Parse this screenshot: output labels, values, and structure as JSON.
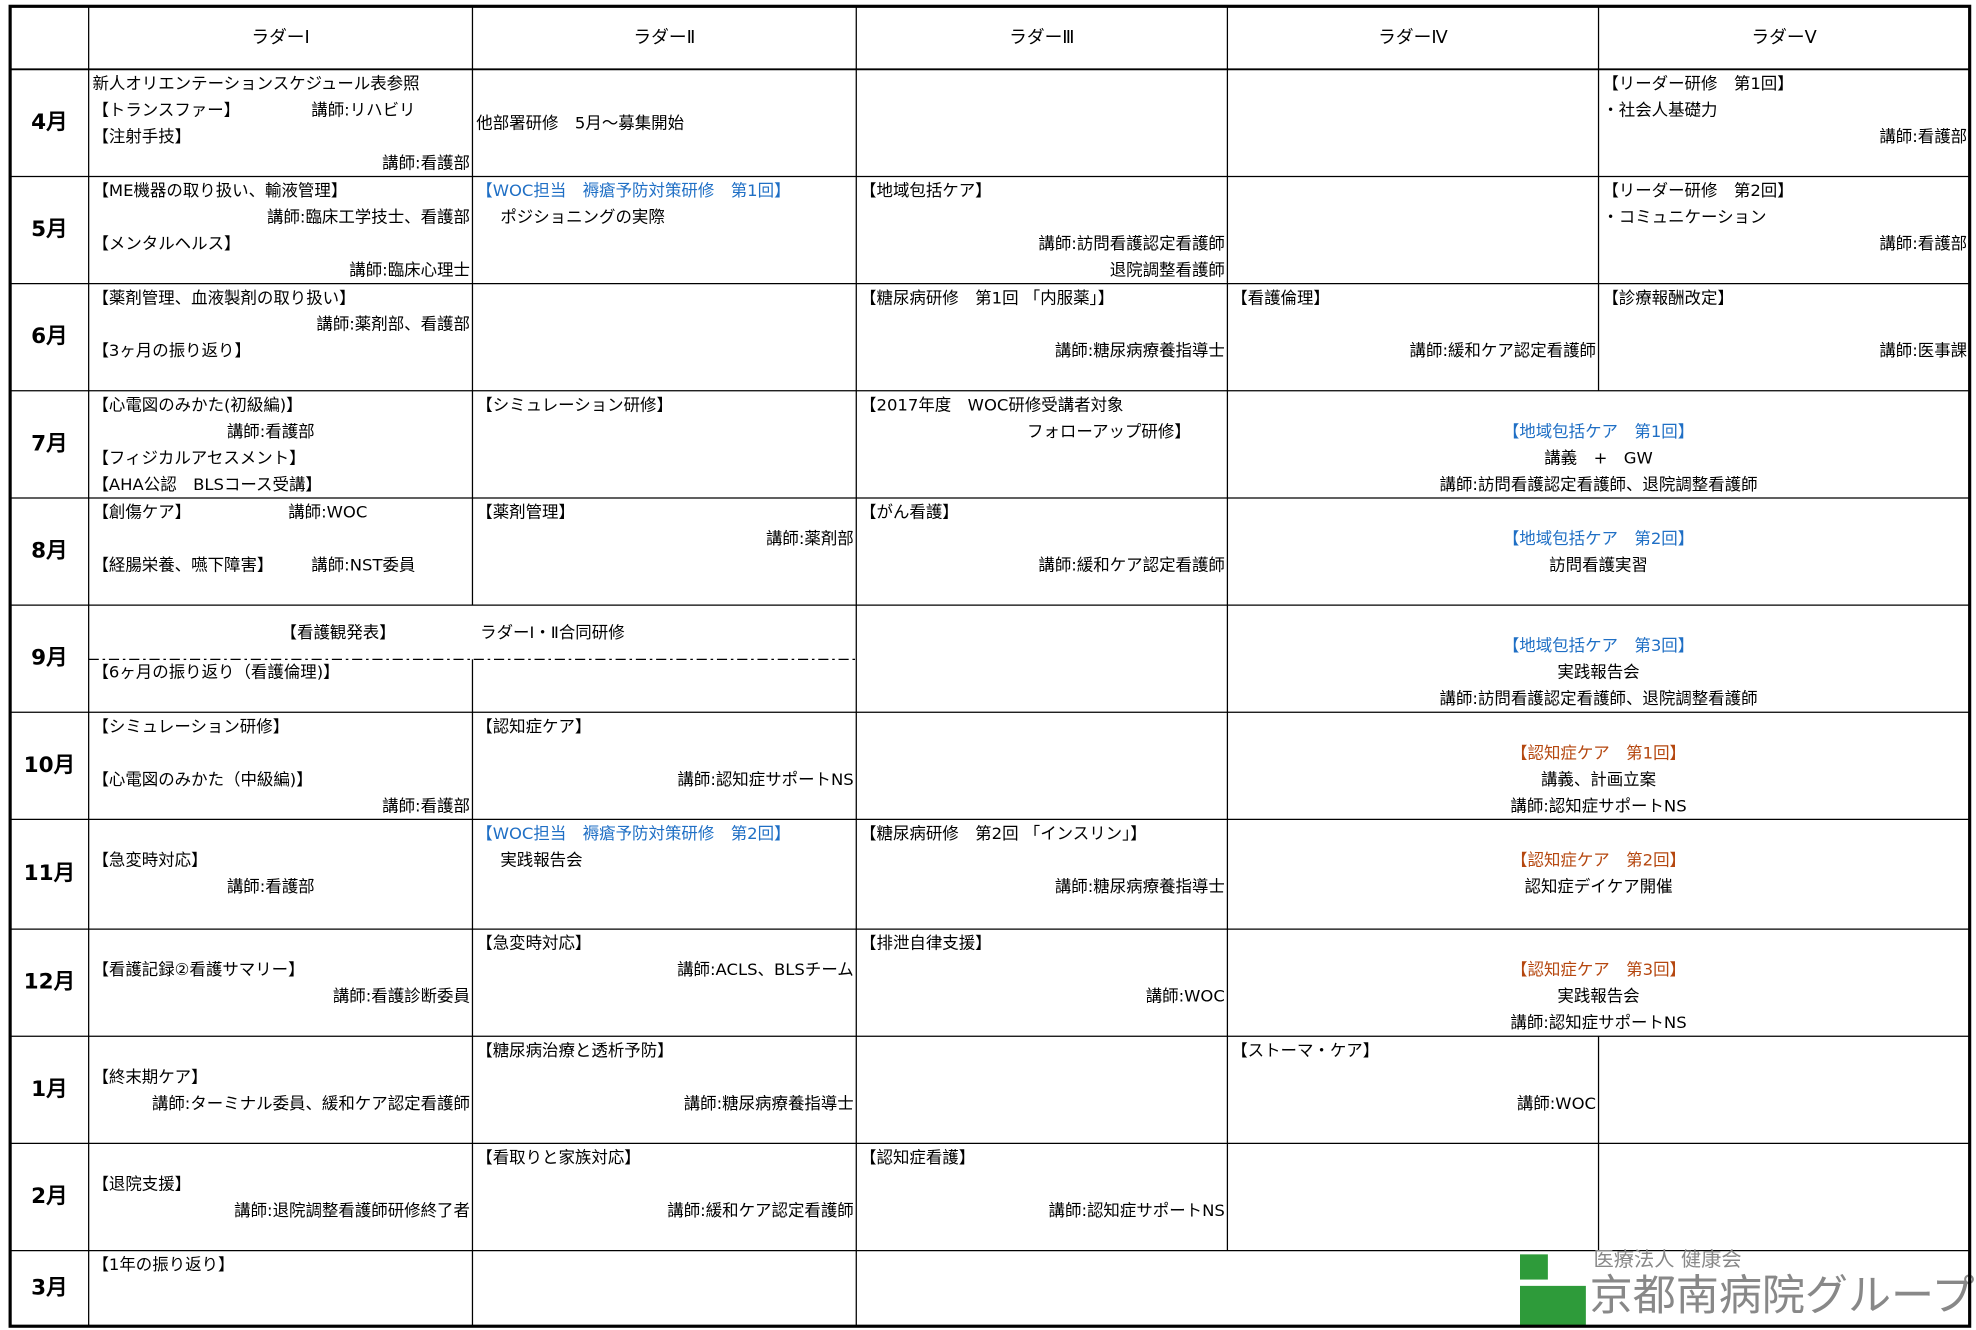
{
  "table": {
    "header": [
      "ラダーⅠ",
      "ラダーⅡ",
      "ラダーⅢ",
      "ラダーⅣ",
      "ラダーⅤ"
    ],
    "rows": [
      {
        "month": "4月",
        "cells": [
          [
            "新人オリエンテーションスケジュール表参照",
            "【トランスファー】",
            "講師:リハビリ",
            "【注射手技】",
            "講師:看護部"
          ],
          [
            "他部署研修　5月～募集開始"
          ],
          [
            "【リーダー研修　第1回】",
            "・社会人基礎力",
            "講師:看護部"
          ]
        ]
      },
      {
        "month": "5月",
        "cells": [
          [
            "【ME機器の取り扱い、輸液管理】",
            "講師:臨床工学技士、看護部",
            "【メンタルヘルス】",
            "講師:臨床心理士"
          ],
          [
            "【WOC担当　褥瘡予防対策研修　第1回】",
            "ポジショニングの実際"
          ],
          [
            "【地域包括ケア】",
            "講師:訪問看護認定看護師",
            "退院調整看護師"
          ],
          [
            "【リーダー研修　第2回】",
            "・コミュニケーション",
            "講師:看護部"
          ]
        ]
      },
      {
        "month": "6月",
        "cells": [
          [
            "【薬剤管理、血液製剤の取り扱い】",
            "講師:薬剤部、看護部",
            "【3ヶ月の振り返り】"
          ],
          [
            "【糖尿病研修　第1回 「内服薬」】",
            "講師:糖尿病療養指導士"
          ],
          [
            "【看護倫理】",
            "講師:緩和ケア認定看護師"
          ],
          [
            "【診療報酬改定】",
            "講師:医事課"
          ]
        ]
      },
      {
        "month": "7月",
        "cells": [
          [
            "【心電図のみかた(初級編)】",
            "講師:看護部",
            "【フィジカルアセスメント】",
            "【AHA公認　BLSコース受講】"
          ],
          [
            "【シミュレーション研修】"
          ],
          [
            "【2017年度　WOC研修受講者対象",
            "フォローアップ研修】"
          ],
          [
            "【地域包括ケア　第1回】",
            "講義　+　GW",
            "講師:訪問看護認定看護師、退院調整看護師"
          ]
        ]
      },
      {
        "month": "8月",
        "cells": [
          [
            "【創傷ケア】",
            "講師:WOC",
            "【経腸栄養、嚥下障害】",
            "講師:NST委員"
          ],
          [
            "【薬剤管理】",
            "講師:薬剤部"
          ],
          [
            "【がん看護】",
            "講師:緩和ケア認定看護師"
          ],
          [
            "【地域包括ケア　第2回】",
            "訪問看護実習"
          ]
        ]
      },
      {
        "month": "9月",
        "cells": [
          [
            "【看護観発表】",
            "ラダーⅠ・Ⅱ合同研修"
          ],
          [
            "【6ヶ月の振り返り（看護倫理)】"
          ],
          [
            "【地域包括ケア　第3回】",
            "実践報告会",
            "講師:訪問看護認定看護師、退院調整看護師"
          ]
        ]
      },
      {
        "month": "10月",
        "cells": [
          [
            "【シミュレーション研修】",
            "【心電図のみかた（中級編)】",
            "講師:看護部"
          ],
          [
            "【認知症ケア】",
            "講師:認知症サポートNS"
          ],
          [
            "【認知症ケア　第1回】",
            "講義、計画立案",
            "講師:認知症サポートNS"
          ]
        ]
      },
      {
        "month": "11月",
        "cells": [
          [
            "【急変時対応】",
            "講師:看護部"
          ],
          [
            "【WOC担当　褥瘡予防対策研修　第2回】",
            "実践報告会"
          ],
          [
            "【糖尿病研修　第2回 「インスリン」】",
            "講師:糖尿病療養指導士"
          ],
          [
            "【認知症ケア　第2回】",
            "認知症デイケア開催"
          ]
        ]
      },
      {
        "month": "12月",
        "cells": [
          [
            "【看護記録②看護サマリー】",
            "講師:看護診断委員"
          ],
          [
            "【急変時対応】",
            "講師:ACLS、BLSチーム"
          ],
          [
            "【排泄自律支援】",
            "講師:WOC"
          ],
          [
            "【認知症ケア　第3回】",
            "実践報告会",
            "講師:認知症サポートNS"
          ]
        ]
      },
      {
        "month": "1月",
        "cells": [
          [
            "【終末期ケア】",
            "講師:ターミナル委員、緩和ケア認定看護師"
          ],
          [
            "【糖尿病治療と透析予防】",
            "講師:糖尿病療養指導士"
          ],
          [
            "【ストーマ・ケア】",
            "講師:WOC"
          ]
        ]
      },
      {
        "month": "2月",
        "cells": [
          [
            "【退院支援】",
            "講師:退院調整看護師研修終了者"
          ],
          [
            "【看取りと家族対応】",
            "講師:緩和ケア認定看護師"
          ],
          [
            "【認知症看護】",
            "講師:認知症サポートNS"
          ]
        ]
      },
      {
        "month": "3月",
        "cells": [
          [
            "【1年の振り返り】"
          ],
          [
            "医療法人 健康会",
            "京都南病院グループ"
          ]
        ]
      }
    ]
  }
}
